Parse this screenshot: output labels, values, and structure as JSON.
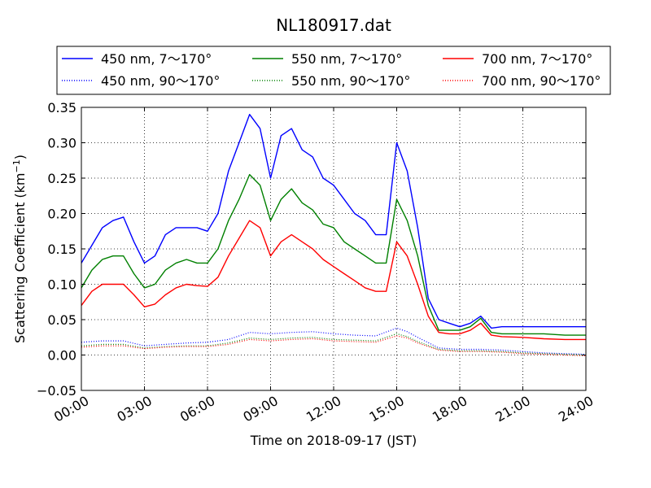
{
  "chart_data": {
    "type": "line",
    "title": "NL180917.dat",
    "xlabel": "Time on 2018-09-17 (JST)",
    "ylabel_main": "Scattering Coefficient (km",
    "ylabel_sup": "−1",
    "ylabel_tail": ")",
    "xlim": [
      0,
      24
    ],
    "ylim": [
      -0.05,
      0.35
    ],
    "grid": true,
    "legend_position": "top, above plot",
    "x_ticks": [
      0,
      3,
      6,
      9,
      12,
      15,
      18,
      21,
      24
    ],
    "x_tick_labels": [
      "00:00",
      "03:00",
      "06:00",
      "09:00",
      "12:00",
      "15:00",
      "18:00",
      "21:00",
      "24:00"
    ],
    "y_ticks": [
      -0.05,
      0.0,
      0.05,
      0.1,
      0.15,
      0.2,
      0.25,
      0.3,
      0.35
    ],
    "y_tick_labels": [
      "−0.05",
      "0.00",
      "0.05",
      "0.10",
      "0.15",
      "0.20",
      "0.25",
      "0.30",
      "0.35"
    ],
    "series": [
      {
        "name": "450 nm, 7～170°",
        "color": "#0000ff",
        "style": "solid",
        "x": [
          0,
          0.5,
          1,
          1.5,
          2,
          2.5,
          3,
          3.5,
          4,
          4.5,
          5,
          5.5,
          6,
          6.5,
          7,
          7.5,
          8,
          8.5,
          9,
          9.5,
          10,
          10.5,
          11,
          11.5,
          12,
          12.5,
          13,
          13.5,
          14,
          14.5,
          15,
          15.5,
          16,
          16.5,
          17,
          17.5,
          18,
          18.5,
          19,
          19.5,
          20,
          21,
          22,
          23,
          24
        ],
        "y": [
          0.13,
          0.155,
          0.18,
          0.19,
          0.195,
          0.16,
          0.13,
          0.14,
          0.17,
          0.18,
          0.18,
          0.18,
          0.175,
          0.2,
          0.26,
          0.3,
          0.34,
          0.32,
          0.25,
          0.31,
          0.32,
          0.29,
          0.28,
          0.25,
          0.24,
          0.22,
          0.2,
          0.19,
          0.17,
          0.17,
          0.3,
          0.26,
          0.18,
          0.08,
          0.05,
          0.045,
          0.04,
          0.045,
          0.055,
          0.038,
          0.04,
          0.04,
          0.04,
          0.04,
          0.04
        ]
      },
      {
        "name": "450 nm, 90～170°",
        "color": "#0000ff",
        "style": "dotted",
        "x": [
          0,
          1,
          2,
          3,
          4,
          5,
          6,
          7,
          8,
          9,
          10,
          11,
          12,
          13,
          14,
          15,
          15.5,
          16,
          17,
          18,
          19,
          20,
          21,
          22,
          23,
          24
        ],
        "y": [
          0.018,
          0.02,
          0.02,
          0.013,
          0.015,
          0.017,
          0.018,
          0.022,
          0.032,
          0.03,
          0.032,
          0.033,
          0.03,
          0.028,
          0.027,
          0.038,
          0.033,
          0.025,
          0.01,
          0.008,
          0.008,
          0.007,
          0.005,
          0.003,
          0.002,
          0.001
        ]
      },
      {
        "name": "550 nm, 7～170°",
        "color": "#008000",
        "style": "solid",
        "x": [
          0,
          0.5,
          1,
          1.5,
          2,
          2.5,
          3,
          3.5,
          4,
          4.5,
          5,
          5.5,
          6,
          6.5,
          7,
          7.5,
          8,
          8.5,
          9,
          9.5,
          10,
          10.5,
          11,
          11.5,
          12,
          12.5,
          13,
          13.5,
          14,
          14.5,
          15,
          15.5,
          16,
          16.5,
          17,
          17.5,
          18,
          18.5,
          19,
          19.5,
          20,
          21,
          22,
          23,
          24
        ],
        "y": [
          0.095,
          0.12,
          0.135,
          0.14,
          0.14,
          0.115,
          0.095,
          0.1,
          0.12,
          0.13,
          0.135,
          0.13,
          0.13,
          0.15,
          0.19,
          0.22,
          0.255,
          0.24,
          0.19,
          0.22,
          0.235,
          0.215,
          0.205,
          0.185,
          0.18,
          0.16,
          0.15,
          0.14,
          0.13,
          0.13,
          0.22,
          0.19,
          0.14,
          0.07,
          0.035,
          0.035,
          0.035,
          0.04,
          0.052,
          0.032,
          0.03,
          0.03,
          0.03,
          0.028,
          0.028
        ]
      },
      {
        "name": "550 nm, 90～170°",
        "color": "#008000",
        "style": "dotted",
        "x": [
          0,
          1,
          2,
          3,
          4,
          5,
          6,
          7,
          8,
          9,
          10,
          11,
          12,
          13,
          14,
          15,
          15.5,
          16,
          17,
          18,
          19,
          20,
          21,
          22,
          23,
          24
        ],
        "y": [
          0.013,
          0.015,
          0.015,
          0.01,
          0.012,
          0.013,
          0.013,
          0.017,
          0.024,
          0.022,
          0.024,
          0.025,
          0.022,
          0.021,
          0.02,
          0.03,
          0.026,
          0.019,
          0.008,
          0.006,
          0.006,
          0.005,
          0.003,
          0.002,
          0.001,
          0.0
        ]
      },
      {
        "name": "700 nm, 7～170°",
        "color": "#ff0000",
        "style": "solid",
        "x": [
          0,
          0.5,
          1,
          1.5,
          2,
          2.5,
          3,
          3.5,
          4,
          4.5,
          5,
          5.5,
          6,
          6.5,
          7,
          7.5,
          8,
          8.5,
          9,
          9.5,
          10,
          10.5,
          11,
          11.5,
          12,
          12.5,
          13,
          13.5,
          14,
          14.5,
          15,
          15.5,
          16,
          16.5,
          17,
          17.5,
          18,
          18.5,
          19,
          19.5,
          20,
          21,
          22,
          23,
          24
        ],
        "y": [
          0.07,
          0.09,
          0.1,
          0.1,
          0.1,
          0.085,
          0.068,
          0.072,
          0.085,
          0.095,
          0.1,
          0.098,
          0.097,
          0.11,
          0.14,
          0.165,
          0.19,
          0.18,
          0.14,
          0.16,
          0.17,
          0.16,
          0.15,
          0.135,
          0.125,
          0.115,
          0.105,
          0.095,
          0.09,
          0.09,
          0.16,
          0.14,
          0.1,
          0.055,
          0.032,
          0.03,
          0.03,
          0.035,
          0.045,
          0.028,
          0.026,
          0.025,
          0.023,
          0.022,
          0.022
        ]
      },
      {
        "name": "700 nm, 90～170°",
        "color": "#ff0000",
        "style": "dotted",
        "x": [
          0,
          1,
          2,
          3,
          4,
          5,
          6,
          7,
          8,
          9,
          10,
          11,
          12,
          13,
          14,
          15,
          15.5,
          16,
          17,
          18,
          19,
          20,
          21,
          22,
          23,
          24
        ],
        "y": [
          0.011,
          0.013,
          0.013,
          0.009,
          0.011,
          0.012,
          0.012,
          0.015,
          0.022,
          0.02,
          0.022,
          0.023,
          0.02,
          0.019,
          0.018,
          0.027,
          0.024,
          0.017,
          0.007,
          0.005,
          0.005,
          0.004,
          0.002,
          0.001,
          0.0,
          -0.001
        ]
      }
    ]
  }
}
